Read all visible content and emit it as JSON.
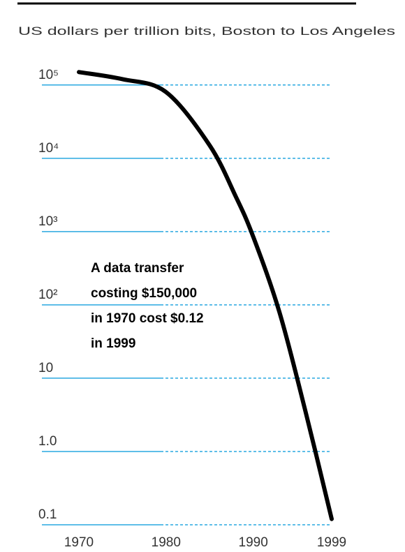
{
  "chart_data": {
    "type": "line",
    "title": "US dollars per trillion bits, Boston to Los Angeles",
    "annotation": [
      "A data transfer",
      "costing $150,000",
      "in 1970 cost $0.12",
      "in 1999"
    ],
    "x": [
      1970,
      1975,
      1980,
      1985,
      1988,
      1990,
      1993,
      1996,
      1999
    ],
    "values": [
      150000,
      120000,
      80000,
      15000,
      3000,
      850,
      80,
      3.5,
      0.12
    ],
    "color": "#000000",
    "log_y": true,
    "xlim": [
      1970,
      1999
    ],
    "xticks": [
      1970,
      1980,
      1990,
      1999
    ],
    "ylim": [
      0.1,
      250000
    ],
    "yticks": [
      0.1,
      {
        "value": 1,
        "label": "1.0"
      },
      10,
      {
        "value": 100,
        "label": "10²"
      },
      {
        "value": 1000,
        "label": "10³"
      },
      {
        "value": 10000,
        "label": "10⁴"
      },
      {
        "value": 100000,
        "label": "10⁵"
      }
    ],
    "grid": true,
    "grid_color": "#29a8e0"
  }
}
